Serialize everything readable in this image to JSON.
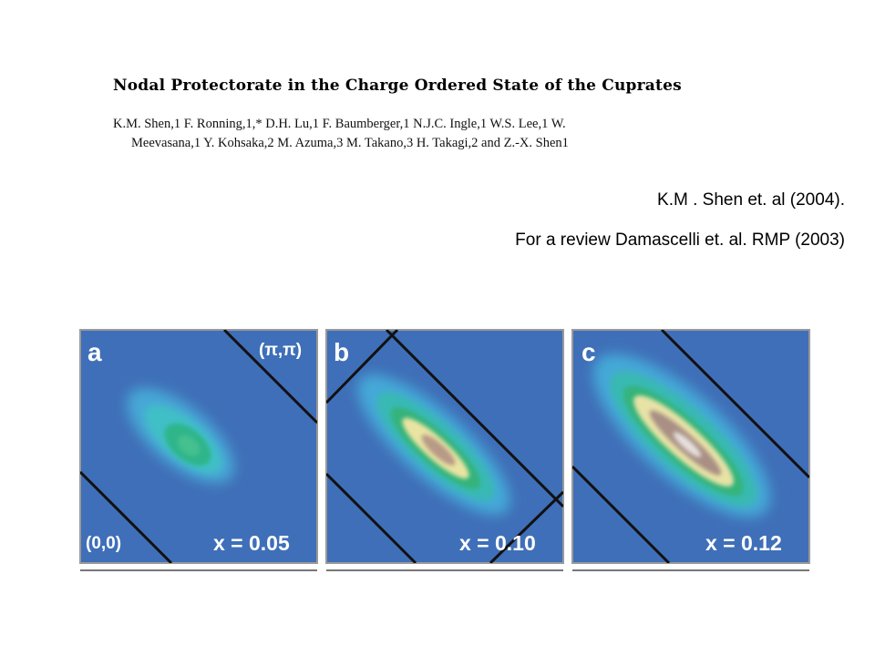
{
  "paper": {
    "title": "Nodal Protectorate in the Charge Ordered State of the Cuprates",
    "authors_line1": "K.M. Shen,1 F. Ronning,1,* D.H. Lu,1 F. Baumberger,1 N.J.C. Ingle,1 W.S. Lee,1 W.",
    "authors_line2": "Meevasana,1 Y. Kohsaka,2 M. Azuma,3 M. Takano,3 H. Takagi,2 and Z.-X. Shen1"
  },
  "citations": {
    "line1": "K.M . Shen et. al (2004).",
    "line2": "For a review Damascelli et. al. RMP (2003)"
  },
  "figure": {
    "background_color": "#3f6fb8",
    "panels": [
      {
        "letter": "a",
        "doping_label": "x = 0.05",
        "corner_top": "(π,π)",
        "corner_bottom": "(0,0)"
      },
      {
        "letter": "b",
        "doping_label": "x = 0.10"
      },
      {
        "letter": "c",
        "doping_label": "x = 0.12"
      }
    ]
  }
}
